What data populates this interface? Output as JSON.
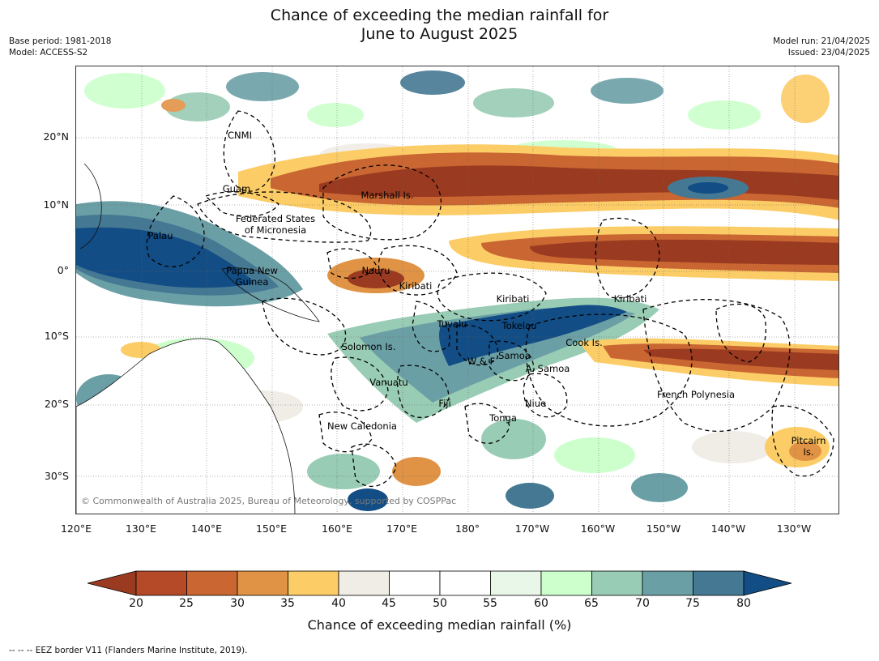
{
  "title_line1": "Chance of exceeding the median rainfall for",
  "title_line2": "June to August 2025",
  "meta": {
    "base_period": "Base period: 1981-2018",
    "model": "Model: ACCESS-S2",
    "model_run": "Model run: 21/04/2025",
    "issued": "Issued: 23/04/2025"
  },
  "axes": {
    "lat_labels": [
      "20°N",
      "10°N",
      "0°",
      "10°S",
      "20°S",
      "30°S"
    ],
    "lon_labels": [
      "120°E",
      "130°E",
      "140°E",
      "150°E",
      "160°E",
      "170°E",
      "180°",
      "170°W",
      "160°W",
      "150°W",
      "140°W",
      "130°W"
    ]
  },
  "regions": [
    {
      "name": "CNMI"
    },
    {
      "name": "Guam"
    },
    {
      "name": "Marshall Is."
    },
    {
      "name": "Federated States"
    },
    {
      "name": "of Micronesia"
    },
    {
      "name": "Palau"
    },
    {
      "name": "Papua New"
    },
    {
      "name": "Guinea"
    },
    {
      "name": "Nauru"
    },
    {
      "name": "Kiribati"
    },
    {
      "name": "Kiribati"
    },
    {
      "name": "Kiribati"
    },
    {
      "name": "Tuvalu"
    },
    {
      "name": "Tokelau"
    },
    {
      "name": "Cook Is."
    },
    {
      "name": "Solomon Is."
    },
    {
      "name": "W & F"
    },
    {
      "name": "Samoa"
    },
    {
      "name": "A. Samoa"
    },
    {
      "name": "Vanuatu"
    },
    {
      "name": "Fiji"
    },
    {
      "name": "Niue"
    },
    {
      "name": "Tonga"
    },
    {
      "name": "French Polynesia"
    },
    {
      "name": "New Caledonia"
    },
    {
      "name": "Pitcairn"
    },
    {
      "name": "Is."
    }
  ],
  "copyright": "© Commonwealth of Australia 2025, Bureau of Meteorology, supported by COSPPac",
  "colorbar": {
    "title": "Chance of exceeding median rainfall (%)",
    "ticks": [
      "20",
      "25",
      "30",
      "35",
      "40",
      "45",
      "50",
      "55",
      "60",
      "65",
      "70",
      "75",
      "80"
    ],
    "colors": [
      "#9a3a20",
      "#b44a28",
      "#c96632",
      "#e09345",
      "#fccc66",
      "#f0ece6",
      "#ffffff",
      "#ffffff",
      "#e9f7e9",
      "#ccffcc",
      "#99ccb4",
      "#6b9fa6",
      "#447893",
      "#124d85"
    ]
  },
  "footnote": "--  --  -- EEZ border V11 (Flanders Marine Institute, 2019)."
}
